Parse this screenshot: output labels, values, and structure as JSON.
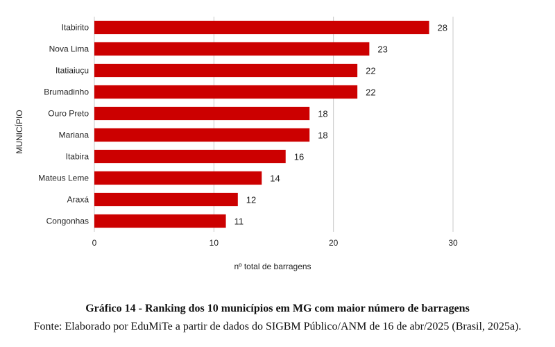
{
  "chart_data": {
    "type": "bar",
    "orientation": "horizontal",
    "categories": [
      "Itabirito",
      "Nova Lima",
      "Itatiaiuçu",
      "Brumadinho",
      "Ouro Preto",
      "Mariana",
      "Itabira",
      "Mateus Leme",
      "Araxá",
      "Congonhas"
    ],
    "values": [
      28,
      23,
      22,
      22,
      18,
      18,
      16,
      14,
      12,
      11
    ],
    "xlabel": "nº total de barragens",
    "ylabel": "MUNICÍPIO",
    "xlim": [
      0,
      30
    ],
    "xticks": [
      0,
      10,
      20,
      30
    ],
    "grid": true,
    "bar_color": "#cc0000",
    "data_labels": true
  },
  "caption": {
    "title": "Gráfico 14 - Ranking dos 10 municípios em MG com maior número de barragens",
    "source": "Fonte: Elaborado por EduMiTe a partir de dados do SIGBM Público/ANM de 16 de abr/2025 (Brasil, 2025a)."
  }
}
